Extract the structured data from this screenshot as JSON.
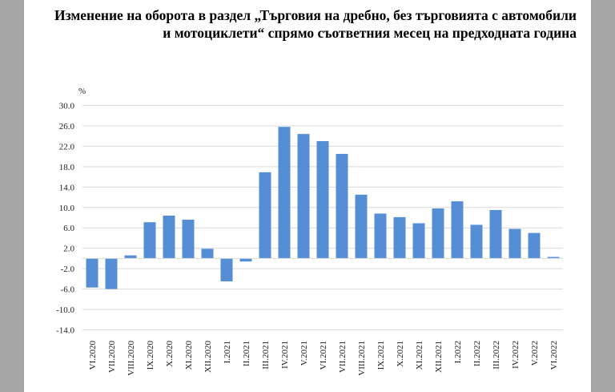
{
  "chart_data": {
    "type": "bar",
    "title": "Изменение на оборота в раздел „Търговия на дребно, без търговията с автомобили и мотоциклети“ спрямо съответния месец на предходната година",
    "ylabel": "%",
    "xlabel": "",
    "ylim": [
      -14,
      30
    ],
    "yticks": [
      30.0,
      26.0,
      22.0,
      18.0,
      14.0,
      10.0,
      6.0,
      2.0,
      -2.0,
      -6.0,
      -10.0,
      -14.0
    ],
    "grid": true,
    "bar_color": "#558ed5",
    "categories": [
      "VI.2020",
      "VII.2020",
      "VIII.2020",
      "IX.2020",
      "X.2020",
      "XI.2020",
      "XII.2020",
      "I.2021",
      "II.2021",
      "III.2021",
      "IV.2021",
      "V.2021",
      "VI.2021",
      "VII.2021",
      "VIII.2021",
      "IX.2021",
      "X.2021",
      "XI.2021",
      "XII.2021",
      "I.2022",
      "II.2022",
      "III.2022",
      "IV.2022",
      "V.2022",
      "VI.2022"
    ],
    "values": [
      -5.7,
      -6.0,
      0.6,
      7.1,
      8.4,
      7.6,
      1.9,
      -4.5,
      -0.6,
      16.9,
      25.8,
      24.4,
      23.0,
      20.5,
      12.5,
      8.8,
      8.1,
      6.9,
      9.8,
      11.2,
      6.6,
      9.5,
      5.8,
      5.0,
      0.3
    ]
  }
}
